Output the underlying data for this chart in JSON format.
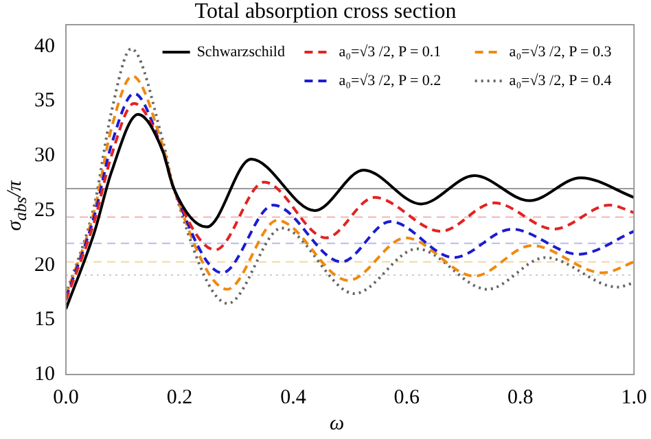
{
  "chart_data": {
    "type": "line",
    "title": "Total absorption cross section",
    "xlabel": "ω",
    "ylabel": "σ$_{abs}$/π",
    "xlim": [
      0,
      1
    ],
    "xticks": [
      {
        "value": 0,
        "label": "0.0"
      },
      {
        "value": 0.2,
        "label": "0.2"
      },
      {
        "value": 0.4,
        "label": "0.4"
      },
      {
        "value": 0.6,
        "label": "0.6"
      },
      {
        "value": 0.8,
        "label": "0.8"
      },
      {
        "value": 1,
        "label": "1.0"
      }
    ],
    "ylim": [
      10,
      42
    ],
    "yticks": [
      10,
      15,
      20,
      25,
      30,
      35,
      40
    ],
    "grid": false,
    "legend": "top",
    "marker": "none",
    "series": [
      {
        "name": "Schwarzschild",
        "color": "#000000",
        "line_style": "solid",
        "x": [
          0,
          0.05,
          0.08,
          0.127,
          0.17,
          0.19,
          0.248,
          0.326,
          0.438,
          0.524,
          0.625,
          0.719,
          0.816,
          0.906,
          1.0
        ],
        "values": [
          16.0,
          23,
          28.5,
          33.8,
          30.5,
          27,
          23.5,
          29.7,
          25.0,
          28.7,
          25.6,
          28.2,
          25.9,
          28.0,
          26.2
        ]
      },
      {
        "name": "a₀=√3 /2, P = 0.1",
        "color": "#e32222",
        "line_style": "dashed",
        "x": [
          0,
          0.05,
          0.08,
          0.12,
          0.17,
          0.19,
          0.263,
          0.349,
          0.458,
          0.543,
          0.66,
          0.754,
          0.859,
          0.957,
          1.0
        ],
        "values": [
          16.8,
          24,
          30,
          34.8,
          30.5,
          27,
          21.4,
          27.6,
          22.5,
          26.2,
          23.1,
          25.7,
          23.3,
          25.5,
          24.8
        ]
      },
      {
        "name": "a₀=√3 /2, P = 0.2",
        "color": "#1c1cd0",
        "line_style": "dashed",
        "x": [
          0,
          0.05,
          0.08,
          0.12,
          0.17,
          0.19,
          0.275,
          0.365,
          0.485,
          0.571,
          0.683,
          0.785,
          0.902,
          1.0
        ],
        "values": [
          17,
          24.5,
          31,
          35.7,
          30.5,
          27,
          19.3,
          25.5,
          20.3,
          24.0,
          20.7,
          23.3,
          21.0,
          23.1
        ]
      },
      {
        "name": "a₀=√3 /2, P = 0.3",
        "color": "#ef8a10",
        "line_style": "dashed",
        "x": [
          0,
          0.05,
          0.08,
          0.117,
          0.17,
          0.19,
          0.284,
          0.372,
          0.497,
          0.598,
          0.719,
          0.82,
          0.945,
          1.0
        ],
        "values": [
          17.2,
          25,
          32.5,
          37.3,
          31,
          27,
          17.8,
          24.1,
          18.6,
          22.5,
          19.0,
          21.8,
          19.3,
          20.3
        ]
      },
      {
        "name": "a₀=√3 /2, P = 0.4",
        "color": "#666666",
        "line_style": "dotted",
        "x": [
          0,
          0.05,
          0.08,
          0.115,
          0.17,
          0.19,
          0.285,
          0.38,
          0.508,
          0.618,
          0.742,
          0.844,
          0.971,
          1.0
        ],
        "values": [
          17.3,
          25.5,
          34,
          39.8,
          31.5,
          27,
          16.5,
          23.4,
          17.4,
          21.5,
          17.8,
          20.7,
          18.0,
          18.4
        ]
      }
    ],
    "ref_lines": [
      {
        "axis": "y",
        "value": 27.0,
        "color": "#999999",
        "line_style": "solid"
      },
      {
        "axis": "y",
        "value": 24.4,
        "color": "#f2b4b4",
        "line_style": "dashed"
      },
      {
        "axis": "y",
        "value": 22.0,
        "color": "#b4bcf2",
        "line_style": "dashed"
      },
      {
        "axis": "y",
        "value": 20.3,
        "color": "#f5d6a0",
        "line_style": "dashed"
      },
      {
        "axis": "y",
        "value": 19.1,
        "color": "#cccccc",
        "line_style": "dotted"
      }
    ]
  }
}
